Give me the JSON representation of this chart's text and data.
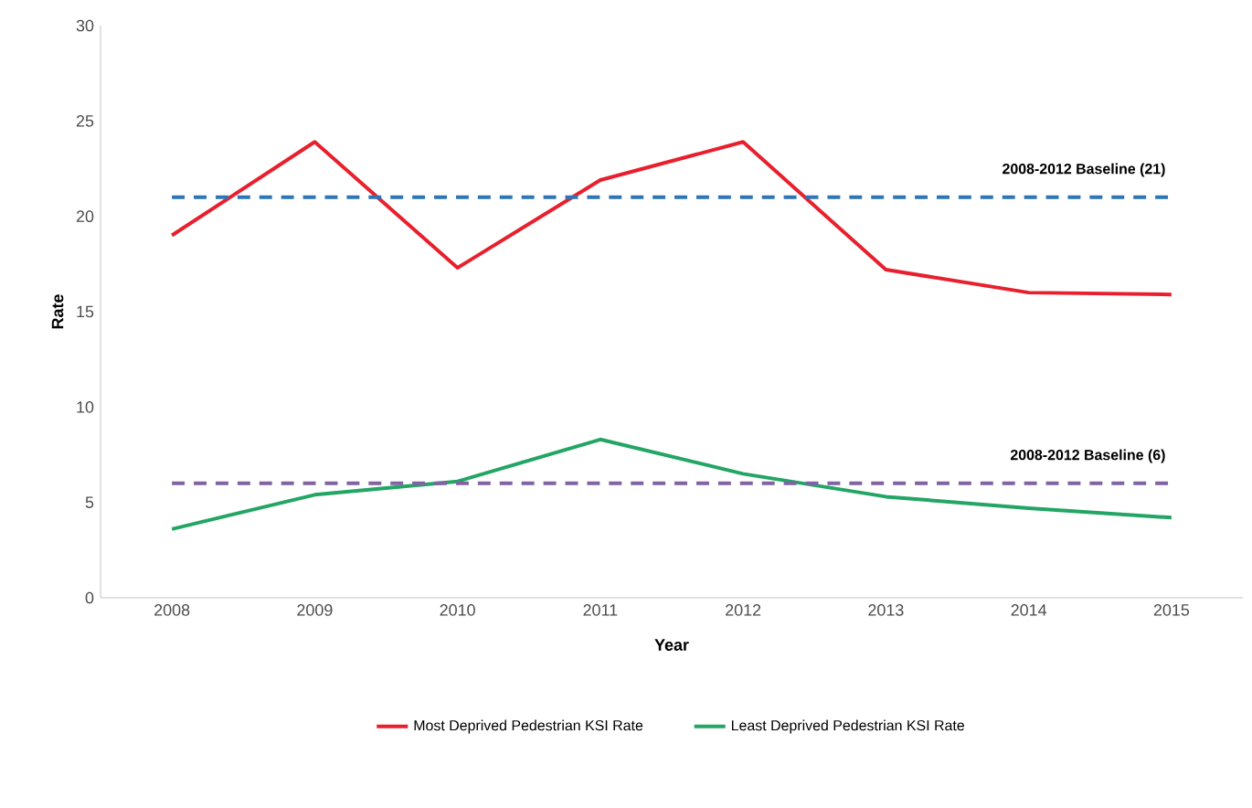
{
  "chart_data": {
    "type": "line",
    "xlabel": "Year",
    "ylabel": "Rate",
    "categories": [
      "2008",
      "2009",
      "2010",
      "2011",
      "2012",
      "2013",
      "2014",
      "2015"
    ],
    "series": [
      {
        "name": "Most Deprived Pedestrian KSI Rate",
        "color": "#e8202e",
        "values": [
          19.0,
          23.9,
          17.3,
          21.9,
          23.9,
          17.2,
          16.0,
          15.9
        ]
      },
      {
        "name": "Least Deprived Pedestrian KSI Rate",
        "color": "#22a565",
        "values": [
          3.6,
          5.4,
          6.1,
          8.3,
          6.5,
          5.3,
          4.7,
          4.2
        ]
      }
    ],
    "ylim": [
      0,
      30
    ],
    "yticks": [
      0,
      5,
      10,
      15,
      20,
      25,
      30
    ],
    "ref_lines": [
      {
        "axis": "y",
        "value": 21,
        "label": "2008-2012 Baseline (21)",
        "color": "#2e75b6",
        "line_style": "dashed"
      },
      {
        "axis": "y",
        "value": 6,
        "label": "2008-2012 Baseline (6)",
        "color": "#8064a2",
        "line_style": "dashed"
      }
    ],
    "legend": "bottom",
    "grid": false,
    "marker": "none",
    "line_style": "solid"
  }
}
